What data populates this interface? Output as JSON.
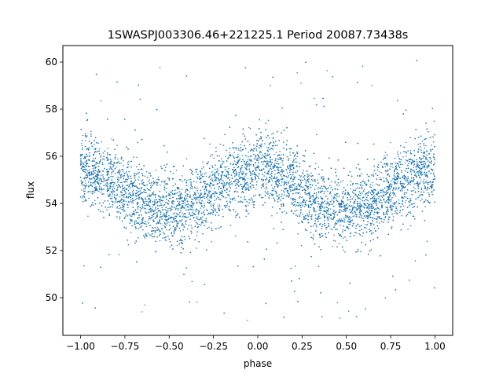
{
  "chart_data": {
    "type": "scatter",
    "title": "1SWASPJ003306.46+221225.1 Period 20087.73438s",
    "xlabel": "phase",
    "ylabel": "flux",
    "xlim": [
      -1.1,
      1.1
    ],
    "ylim": [
      48.4,
      60.7
    ],
    "xticks": [
      -1.0,
      -0.75,
      -0.5,
      -0.25,
      0.0,
      0.25,
      0.5,
      0.75,
      1.0
    ],
    "xtick_labels": [
      "−1.00",
      "−0.75",
      "−0.50",
      "−0.25",
      "0.00",
      "0.25",
      "0.50",
      "0.75",
      "1.00"
    ],
    "yticks": [
      50,
      52,
      54,
      56,
      58,
      60
    ],
    "ytick_labels": [
      "50",
      "52",
      "54",
      "56",
      "58",
      "60"
    ],
    "grid": false,
    "legend": "none",
    "point_color": "#1f77b4",
    "series": [
      {
        "model": "sinusoid",
        "phase_range": [
          -1.0,
          1.0
        ],
        "mean_flux": 54.55,
        "amplitude": 0.85,
        "cycles_per_phase": 2,
        "peaks_at_phase": [
          -1.0,
          0.0,
          1.0
        ],
        "troughs_at_phase": [
          -0.5,
          0.5
        ],
        "scatter_sigma": 0.75,
        "outlier_flux_range": [
          49.0,
          60.1
        ],
        "points_x_sample": [
          -1.0,
          -0.75,
          -0.5,
          -0.25,
          0.0,
          0.25,
          0.5,
          0.75,
          1.0
        ],
        "points_y_sample": [
          55.4,
          54.6,
          53.7,
          54.5,
          55.4,
          54.6,
          53.7,
          54.5,
          55.4
        ]
      }
    ]
  }
}
